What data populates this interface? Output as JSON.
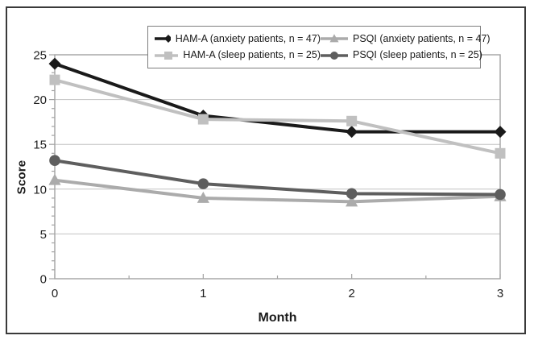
{
  "chart_data": {
    "type": "line",
    "title": "",
    "xlabel": "Month",
    "ylabel": "Score",
    "x": [
      0,
      1,
      2,
      3
    ],
    "xticks": [
      0,
      1,
      2,
      3
    ],
    "yticks": [
      0,
      5,
      10,
      15,
      20,
      25
    ],
    "ylim": [
      0,
      25
    ],
    "xlim": [
      0,
      3
    ],
    "grid": "horizontal gridlines at each major y tick",
    "legend_position": "top center, framed box, 2 columns x 2 rows",
    "series": [
      {
        "name": "HAM-A (anxiety patients, n = 47)",
        "marker": "diamond",
        "color": "#1a1a1a",
        "values": [
          24.0,
          18.2,
          16.4,
          16.4
        ]
      },
      {
        "name": "PSQI (anxiety patients, n = 47)",
        "marker": "triangle",
        "color": "#ababab",
        "values": [
          11.0,
          9.0,
          8.6,
          9.2
        ]
      },
      {
        "name": "HAM-A (sleep patients, n = 25)",
        "marker": "square",
        "color": "#c0c0c0",
        "values": [
          22.2,
          17.8,
          17.6,
          14.0
        ]
      },
      {
        "name": "PSQI (sleep patients, n = 25)",
        "marker": "circle",
        "color": "#5e5e5e",
        "values": [
          13.2,
          10.6,
          9.5,
          9.4
        ]
      }
    ]
  },
  "colors": {
    "background": "#ffffff",
    "figure_border": "#3a3a3a",
    "axis": "#a3a3a3",
    "gridline": "#c2c2c2",
    "tick_label": "#1f1f1f",
    "legend_border": "#7d7d7d",
    "legend_text": "#1a1a1a"
  }
}
